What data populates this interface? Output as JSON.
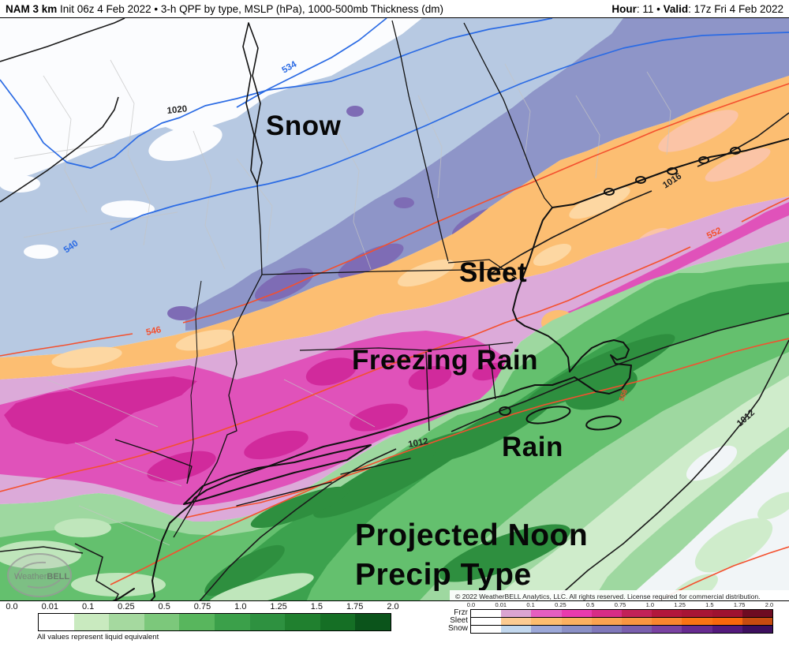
{
  "header": {
    "title_bold": "NAM 3 km",
    "title_rest": " Init 06z 4 Feb 2022 • 3-h QPF by type, MSLP (hPa), 1000-500mb Thickness (dm)",
    "hour_label": "Hour",
    "hour_value": ": 11 ",
    "bullet": "• ",
    "valid_label": "Valid",
    "valid_value": ": 17z Fri 4 Feb 2022"
  },
  "annotations": {
    "snow": "Snow",
    "sleet": "Sleet",
    "frzr": "Freezing Rain",
    "rain": "Rain",
    "caption_line1": "Projected Noon",
    "caption_line2": "Precip Type"
  },
  "contour_labels": {
    "mslp_1020": "1020",
    "mslp_1016": "1016",
    "mslp_1012a": "1012",
    "mslp_1012b": "1012",
    "thk_534": "534",
    "thk_540": "540",
    "thk_546": "546",
    "thk_552": "552",
    "thk_558": "558"
  },
  "watermark": {
    "brand_a": "Weather",
    "brand_b": "BELL"
  },
  "copyright": "© 2022 WeatherBELL Analytics, LLC. All rights reserved. License required for commercial distribution.",
  "legend_qpf": {
    "ticks": [
      "0.0",
      "0.01",
      "0.1",
      "0.25",
      "0.5",
      "0.75",
      "1.0",
      "1.25",
      "1.5",
      "1.75",
      "2.0"
    ],
    "caption": "All values represent liquid equivalent",
    "colors": [
      "#ffffff",
      "#c9eabf",
      "#a5d99f",
      "#7cc87b",
      "#58b65d",
      "#3ba04a",
      "#2e9140",
      "#20802f",
      "#156f25",
      "#0b541b"
    ]
  },
  "legend_ptype": {
    "ticks": [
      "0.0",
      "0.01",
      "0.1",
      "0.25",
      "0.5",
      "0.75",
      "1.0",
      "1.25",
      "1.5",
      "1.75",
      "2.0"
    ],
    "rows": [
      {
        "label": "Frzr",
        "colors": [
          "#ffffff",
          "#dba4d2",
          "#e55ec0",
          "#e93aae",
          "#d72c86",
          "#c22158",
          "#b2173c",
          "#a81535",
          "#9e1230",
          "#6e0b22"
        ]
      },
      {
        "label": "Sleet",
        "colors": [
          "#ffffff",
          "#fccb92",
          "#fcbd70",
          "#fbb161",
          "#faa351",
          "#f99642",
          "#fa8630",
          "#fa7414",
          "#f8680c",
          "#c84c10"
        ]
      },
      {
        "label": "Snow",
        "colors": [
          "#ffffff",
          "#c3d8ee",
          "#9ca8d8",
          "#8b90c6",
          "#8078ba",
          "#7a5fae",
          "#7a42a2",
          "#672b90",
          "#531a7c",
          "#3d0f5e"
        ]
      }
    ]
  },
  "colors": {
    "bg": "#fbfcfe",
    "no_precip": "#f1f5f7",
    "snow_light": "#b7c9e2",
    "snow_med": "#8e95c8",
    "snow_dark": "#7e6cb5",
    "sleet": "#fcbe72",
    "sleet_light": "#fdd7a2",
    "sleet_salmon": "#fbc4a6",
    "frzr_light": "#dcaad9",
    "frzr": "#e052ba",
    "frzr_deep": "#d12a9c",
    "rain0": "#cfeccb",
    "rain1": "#9ed8a0",
    "rain1b": "#bfe6bb",
    "rain2": "#64c06e",
    "rain3": "#3ca24e",
    "rain4": "#2e8f3f",
    "contour_black": "#1a1a1a",
    "contour_blue": "#2b6be4",
    "contour_red": "#f4502e",
    "county": "#c4c4c4"
  }
}
